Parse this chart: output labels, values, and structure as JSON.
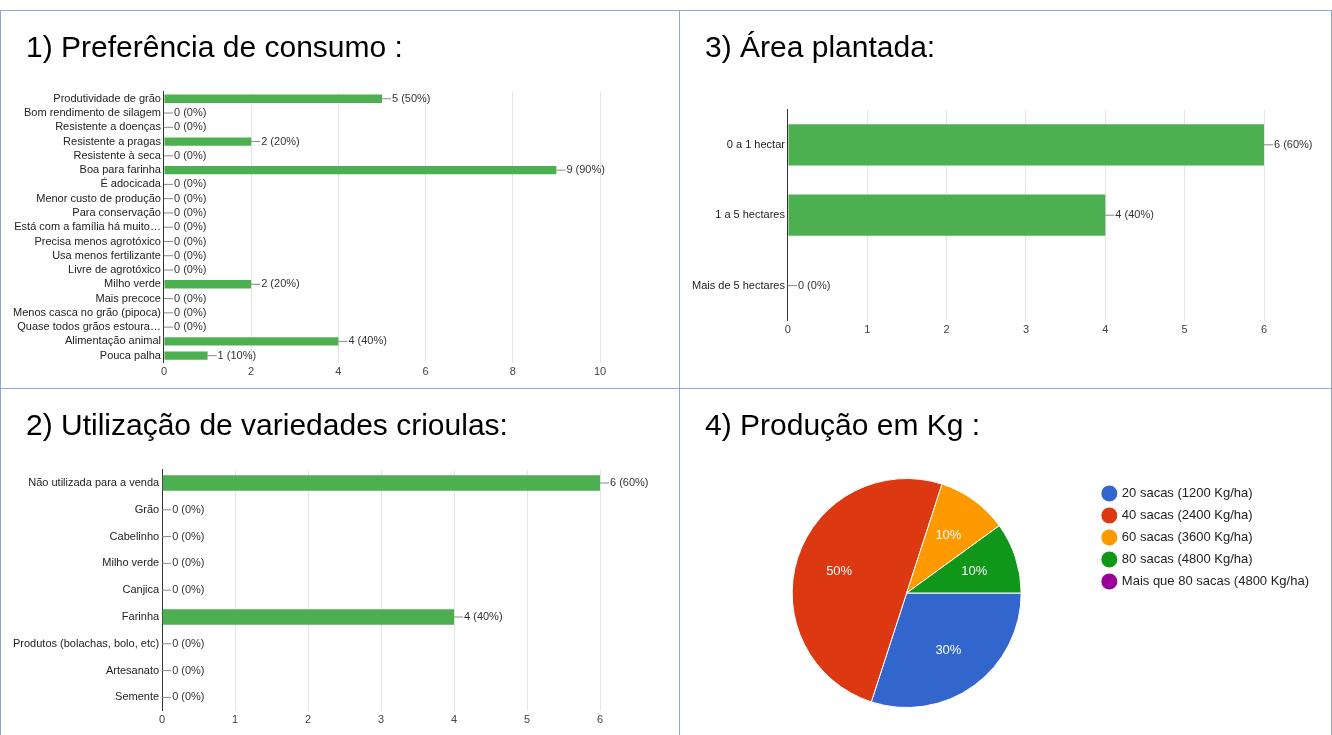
{
  "chart_data": [
    {
      "type": "bar",
      "title": "1) Preferência de consumo :",
      "orientation": "horizontal",
      "color": "#4caf50",
      "grid": "x",
      "categories": [
        "Produtividade de grão",
        "Bom rendimento de silagem",
        "Resistente a doenças",
        "Resistente a pragas",
        "Resistente à seca",
        "Boa para farinha",
        "É adocicada",
        "Menor custo de produção",
        "Para conservação",
        "Está com a família há muito…",
        "Precisa menos agrotóxico",
        "Usa menos fertilizante",
        "Livre de agrotóxico",
        "Milho verde",
        "Mais precoce",
        "Menos casca no grão (pipoca)",
        "Quase todos grãos estoura…",
        "Alimentação animal",
        "Pouca palha"
      ],
      "values": [
        5,
        0,
        0,
        2,
        0,
        9,
        0,
        0,
        0,
        0,
        0,
        0,
        0,
        2,
        0,
        0,
        0,
        4,
        1
      ],
      "value_labels": [
        "5 (50%)",
        "0 (0%)",
        "0 (0%)",
        "2 (20%)",
        "0 (0%)",
        "9 (90%)",
        "0 (0%)",
        "0 (0%)",
        "0 (0%)",
        "0 (0%)",
        "0 (0%)",
        "0 (0%)",
        "0 (0%)",
        "2 (20%)",
        "0 (0%)",
        "0 (0%)",
        "0 (0%)",
        "4 (40%)",
        "1 (10%)"
      ],
      "xlim": [
        0,
        10
      ],
      "xticks": [
        0,
        2,
        4,
        6,
        8,
        10
      ]
    },
    {
      "type": "bar",
      "title": "3) Área plantada:",
      "orientation": "horizontal",
      "color": "#4caf50",
      "grid": "x",
      "categories": [
        "0 a 1 hectar",
        "1 a 5 hectares",
        "Mais de 5 hectares"
      ],
      "values": [
        6,
        4,
        0
      ],
      "value_labels": [
        "6 (60%)",
        "4 (40%)",
        "0 (0%)"
      ],
      "xlim": [
        0,
        6
      ],
      "xticks": [
        0,
        1,
        2,
        3,
        4,
        5,
        6
      ]
    },
    {
      "type": "bar",
      "title": "2) Utilização de variedades crioulas:",
      "orientation": "horizontal",
      "color": "#4caf50",
      "grid": "x",
      "categories": [
        "Não utilizada para a venda",
        "Grão",
        "Cabelinho",
        "Milho verde",
        "Canjica",
        "Farinha",
        "Produtos (bolachas, bolo, etc)",
        "Artesanato",
        "Semente"
      ],
      "values": [
        6,
        0,
        0,
        0,
        0,
        4,
        0,
        0,
        0
      ],
      "value_labels": [
        "6 (60%)",
        "0 (0%)",
        "0 (0%)",
        "0 (0%)",
        "0 (0%)",
        "4 (40%)",
        "0 (0%)",
        "0 (0%)",
        "0 (0%)"
      ],
      "xlim": [
        0,
        6
      ],
      "xticks": [
        0,
        1,
        2,
        3,
        4,
        5,
        6
      ]
    },
    {
      "type": "pie",
      "title": "4) Produção em Kg :",
      "legend": "right",
      "categories": [
        "20 sacas (1200 Kg/ha)",
        "40 sacas (2400 Kg/ha)",
        "60 sacas (3600 Kg/ha)",
        "80 sacas (4800 Kg/ha)",
        "Mais que 80 sacas (4800 Kg/ha)"
      ],
      "values": [
        30,
        50,
        10,
        10,
        0
      ],
      "value_labels": [
        "30%",
        "50%",
        "10%",
        "10%",
        null
      ],
      "colors": [
        "#3366cc",
        "#dc3912",
        "#ff9900",
        "#109618",
        "#990099"
      ]
    }
  ]
}
